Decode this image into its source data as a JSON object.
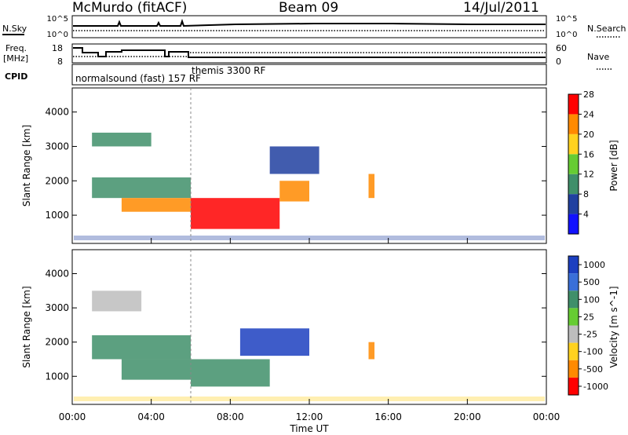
{
  "header": {
    "station": "McMurdo (fitACF)",
    "beam": "Beam 09",
    "date": "14/Jul/2011"
  },
  "status_panels": {
    "nsky_label": "N.Sky",
    "nsearch_label": "N.Search",
    "freq_label_1": "Freq.",
    "freq_label_2": "[MHz]",
    "nave_label": "Nave",
    "cpid_label": "CPID",
    "noise_left_ticks": [
      "10^5",
      "10^0"
    ],
    "noise_right_ticks": [
      "10^5",
      "10^0"
    ],
    "freq_left_ticks": [
      "18",
      "8"
    ],
    "freq_right_ticks": [
      "60",
      "0"
    ],
    "cpid_entries": [
      {
        "text": "normalsound (fast)  157  RF",
        "time_h": 0.0
      },
      {
        "text": "themis  3300  RF",
        "time_h": 6.0
      }
    ]
  },
  "chart_data": [
    {
      "type": "heatmap",
      "title": "",
      "quantity": "Power",
      "colorbar_label": "Power [dB]",
      "xlabel": "Time UT",
      "ylabel": "Slant Range [km]",
      "xlim_hours": [
        0,
        24
      ],
      "ylim_km": [
        180,
        4700
      ],
      "x_ticks": [
        "00:00",
        "04:00",
        "08:00",
        "12:00",
        "16:00",
        "20:00",
        "00:00"
      ],
      "y_ticks": [
        1000,
        2000,
        3000,
        4000
      ],
      "colorbar_ticks": [
        4,
        8,
        12,
        16,
        20,
        24,
        28
      ],
      "colorbar_colors": [
        "#1212ff",
        "#2040a0",
        "#3f8f6a",
        "#66cc33",
        "#ffd21f",
        "#ff8a00",
        "#ff0000"
      ],
      "regions": [
        {
          "t": [
            1.0,
            4.0
          ],
          "r": [
            3000,
            3400
          ],
          "level": "mid"
        },
        {
          "t": [
            1.0,
            6.0
          ],
          "r": [
            1500,
            2100
          ],
          "level": "mid"
        },
        {
          "t": [
            2.5,
            6.0
          ],
          "r": [
            1100,
            1500
          ],
          "level": "high"
        },
        {
          "t": [
            6.0,
            10.5
          ],
          "r": [
            600,
            1500
          ],
          "level": "peak"
        },
        {
          "t": [
            10.5,
            12.0
          ],
          "r": [
            1400,
            2000
          ],
          "level": "high"
        },
        {
          "t": [
            10.0,
            12.5
          ],
          "r": [
            2200,
            3000
          ],
          "level": "low"
        },
        {
          "t": [
            15.0,
            15.3
          ],
          "r": [
            1500,
            2200
          ],
          "level": "high"
        }
      ]
    },
    {
      "type": "heatmap",
      "title": "",
      "quantity": "Velocity",
      "colorbar_label": "Velocity [m s^-1]",
      "xlabel": "Time UT",
      "ylabel": "Slant Range [km]",
      "xlim_hours": [
        0,
        24
      ],
      "ylim_km": [
        180,
        4700
      ],
      "x_ticks": [
        "00:00",
        "04:00",
        "08:00",
        "12:00",
        "16:00",
        "20:00",
        "00:00"
      ],
      "y_ticks": [
        1000,
        2000,
        3000,
        4000
      ],
      "colorbar_ticks": [
        "1000",
        "500",
        "100",
        "25",
        "-25",
        "-100",
        "-500",
        "-1000"
      ],
      "colorbar_colors": [
        "#1c3fc0",
        "#3a6fd8",
        "#3f8f6a",
        "#66cc33",
        "#bdbdbd",
        "#ffd21f",
        "#ff8a00",
        "#ff0000"
      ],
      "regions": [
        {
          "t": [
            1.0,
            3.5
          ],
          "r": [
            2900,
            3500
          ],
          "level": "neutral"
        },
        {
          "t": [
            1.0,
            6.0
          ],
          "r": [
            1500,
            2200
          ],
          "level": "green"
        },
        {
          "t": [
            2.5,
            6.0
          ],
          "r": [
            900,
            1500
          ],
          "level": "green"
        },
        {
          "t": [
            6.0,
            10.0
          ],
          "r": [
            700,
            1500
          ],
          "level": "green"
        },
        {
          "t": [
            8.5,
            12.0
          ],
          "r": [
            1600,
            2400
          ],
          "level": "blue"
        },
        {
          "t": [
            15.0,
            15.3
          ],
          "r": [
            1500,
            2000
          ],
          "level": "orange"
        }
      ]
    }
  ]
}
